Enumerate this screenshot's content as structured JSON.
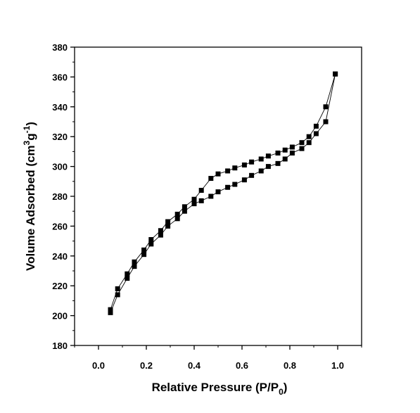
{
  "chart_data": {
    "type": "scatter",
    "title": "",
    "xlabel": {
      "main": "Relative Pressure (P/P",
      "sub": "0",
      "close": ")"
    },
    "ylabel": {
      "main": "Volume Adsorbed (cm",
      "sup1": "3",
      "mid": "g",
      "sup2": "-1",
      "close": ")"
    },
    "xlim": [
      -0.1,
      1.1
    ],
    "ylim": [
      180,
      380
    ],
    "xticks": [
      "0.0",
      "0.2",
      "0.4",
      "0.6",
      "0.8",
      "1.0"
    ],
    "yticks": [
      "180",
      "200",
      "220",
      "240",
      "260",
      "280",
      "300",
      "320",
      "340",
      "360",
      "380"
    ],
    "grid": false,
    "legend": "none",
    "marker": "square",
    "color": "#000000",
    "series": [
      {
        "values": [
          [
            0.05,
            202
          ],
          [
            0.08,
            214
          ],
          [
            0.12,
            225
          ],
          [
            0.15,
            233
          ],
          [
            0.19,
            241
          ],
          [
            0.22,
            248
          ],
          [
            0.26,
            254
          ],
          [
            0.29,
            260
          ],
          [
            0.33,
            265
          ],
          [
            0.36,
            270
          ],
          [
            0.4,
            275
          ],
          [
            0.43,
            277
          ],
          [
            0.47,
            280
          ],
          [
            0.5,
            283
          ],
          [
            0.54,
            286
          ],
          [
            0.57,
            288
          ],
          [
            0.61,
            291
          ],
          [
            0.64,
            294
          ],
          [
            0.68,
            297
          ],
          [
            0.71,
            300
          ],
          [
            0.75,
            302
          ],
          [
            0.78,
            305
          ],
          [
            0.81,
            309
          ],
          [
            0.85,
            312
          ],
          [
            0.88,
            316
          ],
          [
            0.91,
            322
          ],
          [
            0.95,
            330
          ],
          [
            0.99,
            362
          ]
        ]
      },
      {
        "values": [
          [
            0.99,
            362
          ],
          [
            0.95,
            340
          ],
          [
            0.91,
            327
          ],
          [
            0.88,
            320
          ],
          [
            0.85,
            316
          ],
          [
            0.81,
            313
          ],
          [
            0.78,
            311
          ],
          [
            0.75,
            309
          ],
          [
            0.71,
            307
          ],
          [
            0.68,
            305
          ],
          [
            0.64,
            303
          ],
          [
            0.61,
            301
          ],
          [
            0.57,
            299
          ],
          [
            0.54,
            297
          ],
          [
            0.5,
            295
          ],
          [
            0.47,
            292
          ],
          [
            0.43,
            284
          ],
          [
            0.4,
            278
          ],
          [
            0.36,
            273
          ],
          [
            0.33,
            268
          ],
          [
            0.29,
            263
          ],
          [
            0.26,
            257
          ],
          [
            0.22,
            251
          ],
          [
            0.19,
            244
          ],
          [
            0.15,
            236
          ],
          [
            0.12,
            228
          ],
          [
            0.08,
            218
          ],
          [
            0.05,
            204
          ]
        ]
      }
    ]
  }
}
